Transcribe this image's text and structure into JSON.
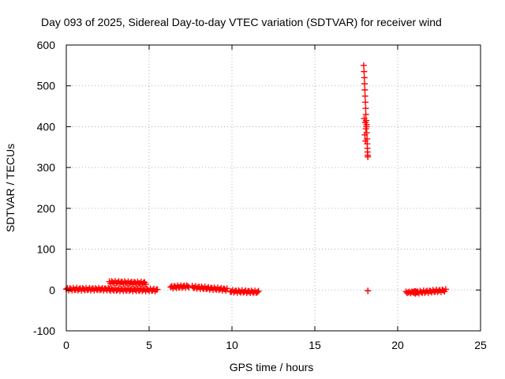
{
  "chart_data": {
    "type": "scatter",
    "title": "Day 093 of 2025, Sidereal Day-to-day VTEC variation (SDTVAR) for receiver wind",
    "xlabel": "GPS time / hours",
    "ylabel": "SDTVAR / TECUs",
    "xlim": [
      0,
      25
    ],
    "ylim": [
      -100,
      600
    ],
    "xticks": [
      0,
      5,
      10,
      15,
      20,
      25
    ],
    "yticks": [
      -100,
      0,
      100,
      200,
      300,
      400,
      500,
      600
    ],
    "grid": true,
    "marker": "+",
    "color": "#ff0000",
    "segments": [
      {
        "x_start": 0.0,
        "x_end": 2.6,
        "y_start": 2,
        "y_end": 2,
        "jitter": 3,
        "step": 0.07
      },
      {
        "x_start": 2.6,
        "x_end": 4.8,
        "y_start": 19,
        "y_end": 17,
        "jitter": 3,
        "step": 0.07
      },
      {
        "x_start": 2.6,
        "x_end": 5.5,
        "y_start": 1,
        "y_end": 0,
        "jitter": 3,
        "step": 0.07
      },
      {
        "x_start": 6.3,
        "x_end": 7.4,
        "y_start": 7,
        "y_end": 9,
        "jitter": 3,
        "step": 0.07
      },
      {
        "x_start": 7.6,
        "x_end": 9.7,
        "y_start": 7,
        "y_end": 1,
        "jitter": 3,
        "step": 0.07
      },
      {
        "x_start": 9.9,
        "x_end": 11.6,
        "y_start": -3,
        "y_end": -5,
        "jitter": 3,
        "step": 0.07
      },
      {
        "x_start": 18.2,
        "x_end": 18.2,
        "y_start": -2,
        "y_end": -2,
        "jitter": 0,
        "step": 0.1
      },
      {
        "x_start": 20.5,
        "x_end": 21.2,
        "y_start": -6,
        "y_end": -5,
        "jitter": 2,
        "step": 0.07
      },
      {
        "x_start": 21.0,
        "x_end": 22.9,
        "y_start": -6,
        "y_end": -1,
        "jitter": 3,
        "step": 0.07
      }
    ],
    "spike": {
      "x": [
        17.95,
        17.97,
        17.99,
        18.0,
        18.02,
        18.03,
        18.05,
        18.07,
        18.08,
        18.1,
        18.12,
        18.13,
        18.15,
        18.16,
        18.17,
        18.18,
        18.19,
        18.2,
        18.05,
        17.98,
        18.08,
        18.12,
        18.02,
        18.06
      ],
      "y": [
        550,
        535,
        520,
        505,
        490,
        475,
        460,
        445,
        430,
        415,
        400,
        385,
        370,
        358,
        347,
        338,
        330,
        326,
        410,
        420,
        395,
        405,
        380,
        365
      ]
    }
  }
}
